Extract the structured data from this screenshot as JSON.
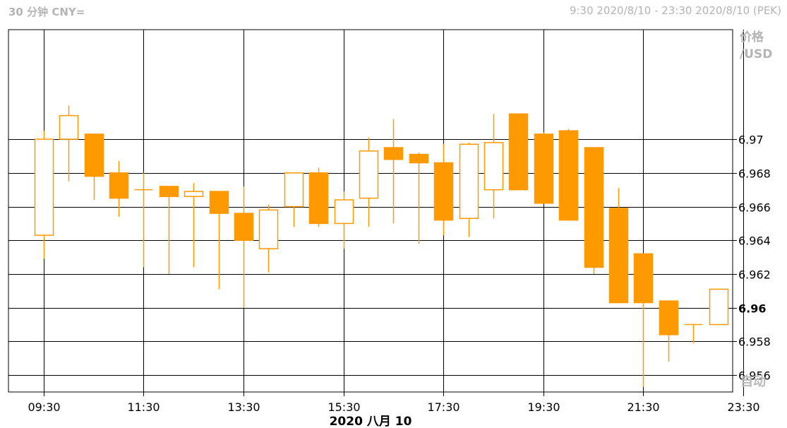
{
  "header": {
    "left": "30 分钟 CNY=",
    "right": "9:30 2020/8/10 - 23:30 2020/8/10 (PEK)"
  },
  "auto_button": "自动",
  "colors": {
    "candle": "#ff9900",
    "grid": "#000000",
    "header": "#b4b4b4"
  },
  "chart_data": {
    "type": "candlestick",
    "y_axis_label": [
      "价格",
      "/USD"
    ],
    "x_axis_title": "2020 八月 10",
    "ylim": [
      6.955,
      6.9765
    ],
    "yticks": [
      "6.956",
      "6.958",
      "6.96",
      "6.962",
      "6.964",
      "6.966",
      "6.968",
      "6.97"
    ],
    "highlight_ytick": "6.96",
    "xtick_labels": [
      "09:30",
      "11:30",
      "13:30",
      "15:30",
      "17:30",
      "19:30",
      "21:30",
      "23:30"
    ],
    "candles": [
      {
        "t": "09:30",
        "o": 6.9643,
        "h": 6.9705,
        "l": 6.9629,
        "c": 6.97
      },
      {
        "t": "10:00",
        "o": 6.97,
        "h": 6.972,
        "l": 6.9675,
        "c": 6.9714
      },
      {
        "t": "10:30",
        "o": 6.9703,
        "h": 6.9703,
        "l": 6.9664,
        "c": 6.9678
      },
      {
        "t": "11:00",
        "o": 6.968,
        "h": 6.9687,
        "l": 6.9654,
        "c": 6.9665
      },
      {
        "t": "11:30",
        "o": 6.967,
        "h": 6.968,
        "l": 6.9624,
        "c": 6.967
      },
      {
        "t": "12:00",
        "o": 6.9672,
        "h": 6.9672,
        "l": 6.962,
        "c": 6.9666
      },
      {
        "t": "12:30",
        "o": 6.9666,
        "h": 6.9674,
        "l": 6.9624,
        "c": 6.9669
      },
      {
        "t": "13:00",
        "o": 6.9669,
        "h": 6.9669,
        "l": 6.9611,
        "c": 6.9656
      },
      {
        "t": "13:30",
        "o": 6.9656,
        "h": 6.9672,
        "l": 6.96,
        "c": 6.964
      },
      {
        "t": "14:00",
        "o": 6.9635,
        "h": 6.9661,
        "l": 6.9621,
        "c": 6.9658
      },
      {
        "t": "14:30",
        "o": 6.966,
        "h": 6.968,
        "l": 6.9648,
        "c": 6.968
      },
      {
        "t": "15:00",
        "o": 6.968,
        "h": 6.9683,
        "l": 6.9648,
        "c": 6.965
      },
      {
        "t": "15:30",
        "o": 6.965,
        "h": 6.9669,
        "l": 6.9635,
        "c": 6.9664
      },
      {
        "t": "16:00",
        "o": 6.9665,
        "h": 6.9701,
        "l": 6.9648,
        "c": 6.9693
      },
      {
        "t": "16:30",
        "o": 6.9695,
        "h": 6.9712,
        "l": 6.965,
        "c": 6.9688
      },
      {
        "t": "17:00",
        "o": 6.9691,
        "h": 6.9692,
        "l": 6.9638,
        "c": 6.9686
      },
      {
        "t": "17:30",
        "o": 6.9686,
        "h": 6.9697,
        "l": 6.9643,
        "c": 6.9652
      },
      {
        "t": "18:00",
        "o": 6.9653,
        "h": 6.9698,
        "l": 6.9642,
        "c": 6.9697
      },
      {
        "t": "18:30",
        "o": 6.967,
        "h": 6.9715,
        "l": 6.9653,
        "c": 6.9698
      },
      {
        "t": "19:00",
        "o": 6.9715,
        "h": 6.9715,
        "l": 6.967,
        "c": 6.967
      },
      {
        "t": "19:30",
        "o": 6.9703,
        "h": 6.9704,
        "l": 6.9662,
        "c": 6.9662
      },
      {
        "t": "20:00",
        "o": 6.9705,
        "h": 6.9706,
        "l": 6.9652,
        "c": 6.9652
      },
      {
        "t": "20:30",
        "o": 6.9695,
        "h": 6.9695,
        "l": 6.962,
        "c": 6.9624
      },
      {
        "t": "21:00",
        "o": 6.9659,
        "h": 6.9671,
        "l": 6.9603,
        "c": 6.9603
      },
      {
        "t": "21:30",
        "o": 6.9632,
        "h": 6.9632,
        "l": 6.9553,
        "c": 6.9603
      },
      {
        "t": "22:00",
        "o": 6.9604,
        "h": 6.9604,
        "l": 6.9568,
        "c": 6.9584
      },
      {
        "t": "22:30",
        "o": 6.959,
        "h": 6.959,
        "l": 6.9579,
        "c": 6.959
      },
      {
        "t": "23:00",
        "o": 6.959,
        "h": 6.9611,
        "l": 6.959,
        "c": 6.9611
      }
    ]
  }
}
